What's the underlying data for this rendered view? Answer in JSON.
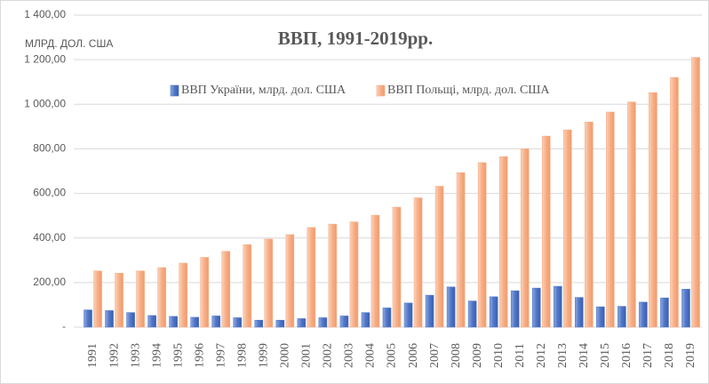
{
  "chart_data": {
    "type": "bar",
    "title": "ВВП, 1991-2019рр.",
    "y_label": "МЛРД. ДОЛ. США",
    "categories": [
      "1991",
      "1992",
      "1993",
      "1994",
      "1995",
      "1996",
      "1997",
      "1998",
      "1999",
      "2000",
      "2001",
      "2002",
      "2003",
      "2004",
      "2005",
      "2006",
      "2007",
      "2008",
      "2009",
      "2010",
      "2011",
      "2012",
      "2013",
      "2014",
      "2015",
      "2016",
      "2017",
      "2018",
      "2019"
    ],
    "series": [
      {
        "name": "ВВП України,  млрд. дол. США",
        "color": "#4f76c8",
        "values": [
          77,
          74,
          65,
          52,
          48,
          44,
          50,
          42,
          31,
          31,
          38,
          42,
          50,
          65,
          86,
          108,
          143,
          180,
          117,
          136,
          163,
          175,
          183,
          133,
          91,
          93,
          112,
          131,
          170
        ]
      },
      {
        "name": "ВВП Польщі, млрд. дол. США",
        "color": "#f6ae86",
        "values": [
          252,
          242,
          252,
          267,
          287,
          313,
          340,
          370,
          395,
          415,
          447,
          462,
          472,
          502,
          538,
          580,
          632,
          693,
          738,
          765,
          800,
          857,
          885,
          920,
          965,
          1010,
          1052,
          1120,
          1210
        ]
      }
    ],
    "ylim": [
      0,
      1400
    ],
    "yticks": [
      {
        "value": 0,
        "label": "-"
      },
      {
        "value": 200,
        "label": "200,00"
      },
      {
        "value": 400,
        "label": "400,00"
      },
      {
        "value": 600,
        "label": "600,00"
      },
      {
        "value": 800,
        "label": "800,00"
      },
      {
        "value": 1000,
        "label": "1 000,00"
      },
      {
        "value": 1200,
        "label": "1 200,00"
      },
      {
        "value": 1400,
        "label": "1 400,00"
      }
    ],
    "grid": true,
    "legend": "top"
  }
}
